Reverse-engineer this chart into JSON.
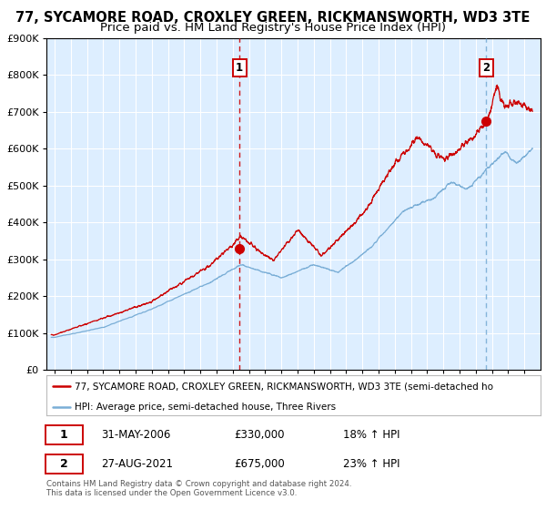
{
  "title1": "77, SYCAMORE ROAD, CROXLEY GREEN, RICKMANSWORTH, WD3 3TE",
  "title2": "Price paid vs. HM Land Registry's House Price Index (HPI)",
  "legend_red": "77, SYCAMORE ROAD, CROXLEY GREEN, RICKMANSWORTH, WD3 3TE (semi-detached ho",
  "legend_blue": "HPI: Average price, semi-detached house, Three Rivers",
  "annotation1_label": "1",
  "annotation1_date": "31-MAY-2006",
  "annotation1_price": "£330,000",
  "annotation1_hpi": "18% ↑ HPI",
  "annotation2_label": "2",
  "annotation2_date": "27-AUG-2021",
  "annotation2_price": "£675,000",
  "annotation2_hpi": "23% ↑ HPI",
  "footer1": "Contains HM Land Registry data © Crown copyright and database right 2024.",
  "footer2": "This data is licensed under the Open Government Licence v3.0.",
  "vline1_x": 2006.42,
  "vline2_x": 2021.65,
  "marker1_x": 2006.42,
  "marker1_y": 330000,
  "marker2_x": 2021.65,
  "marker2_y": 675000,
  "ylim": [
    0,
    900000
  ],
  "xlim_start": 1994.5,
  "xlim_end": 2025.0,
  "red_color": "#cc0000",
  "blue_color": "#7aaed6",
  "bg_color": "#ddeeff",
  "grid_color": "#ffffff",
  "vline1_color": "#cc0000",
  "vline2_color": "#7aaed6",
  "title_fontsize": 10.5,
  "subtitle_fontsize": 9.5
}
